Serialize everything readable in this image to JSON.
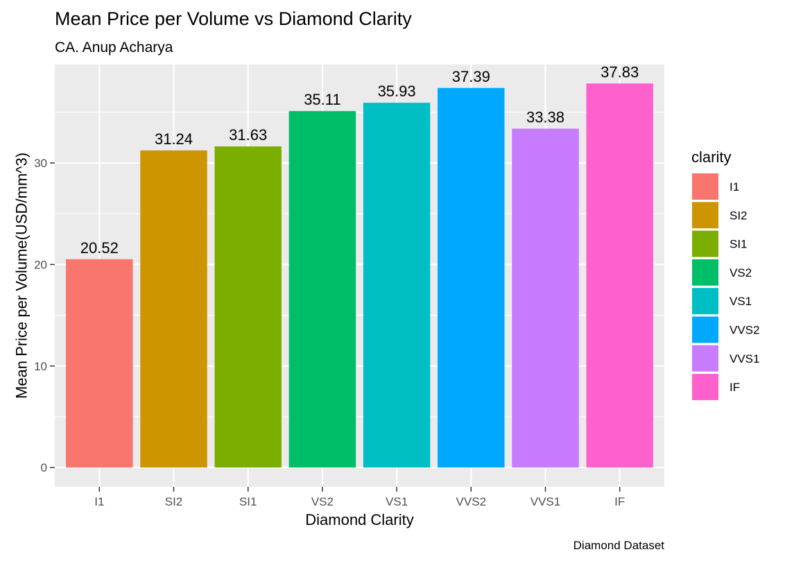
{
  "chart_data": {
    "type": "bar",
    "title": "Mean Price per Volume vs Diamond Clarity",
    "subtitle": "CA. Anup Acharya",
    "caption": "Diamond Dataset",
    "xlabel": "Diamond Clarity",
    "ylabel": "Mean Price per Volume(USD/mm^3)",
    "categories": [
      "I1",
      "SI2",
      "SI1",
      "VS2",
      "VS1",
      "VVS2",
      "VVS1",
      "IF"
    ],
    "values": [
      20.52,
      31.24,
      31.63,
      35.11,
      35.93,
      37.39,
      33.38,
      37.83
    ],
    "data_labels": [
      "20.52",
      "31.24",
      "31.63",
      "35.11",
      "35.93",
      "37.39",
      "33.38",
      "37.83"
    ],
    "colors": [
      "#F8766D",
      "#CD9600",
      "#7CAE00",
      "#00BE67",
      "#00BFC4",
      "#00A9FF",
      "#C77CFF",
      "#FF61CC"
    ],
    "ylim": [
      -1.9,
      39.7
    ],
    "yticks": [
      0,
      10,
      20,
      30
    ],
    "ytick_labels": [
      "0",
      "10",
      "20",
      "30"
    ],
    "grid": true,
    "legend": {
      "title": "clarity",
      "position": "right",
      "entries": [
        "I1",
        "SI2",
        "SI1",
        "VS2",
        "VS1",
        "VVS2",
        "VVS1",
        "IF"
      ]
    }
  }
}
